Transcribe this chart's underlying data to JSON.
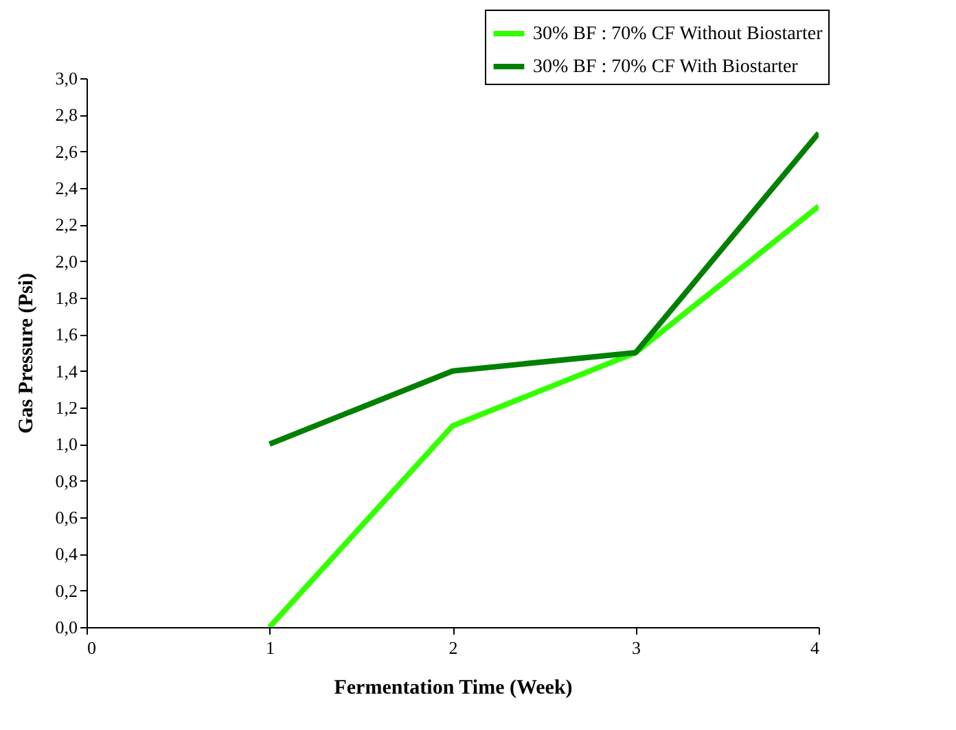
{
  "chart_data": {
    "type": "line",
    "xlabel": "Fermentation Time (Week)",
    "ylabel": "Gas Pressure (Psi)",
    "x": [
      1,
      2,
      3,
      4
    ],
    "series": [
      {
        "name": "30% BF : 70% CF Without Biostarter",
        "color": "#33ff00",
        "values": [
          0.0,
          1.1,
          1.5,
          2.3
        ]
      },
      {
        "name": "30% BF : 70% CF With Biostarter",
        "color": "#008000",
        "values": [
          1.0,
          1.4,
          1.5,
          2.7
        ]
      }
    ],
    "xlim": [
      0,
      4
    ],
    "xticks": [
      0,
      1,
      2,
      3,
      4
    ],
    "ylim": [
      0,
      3.0
    ],
    "yticks": [
      {
        "value": 0,
        "label": "0,0"
      },
      {
        "value": 0.2,
        "label": "0,2"
      },
      {
        "value": 0.4,
        "label": "0,4"
      },
      {
        "value": 0.6,
        "label": "0,6"
      },
      {
        "value": 0.8,
        "label": "0,8"
      },
      {
        "value": 1.0,
        "label": "1,0"
      },
      {
        "value": 1.2,
        "label": "1,2"
      },
      {
        "value": 1.4,
        "label": "1,4"
      },
      {
        "value": 1.6,
        "label": "1,6"
      },
      {
        "value": 1.8,
        "label": "1,8"
      },
      {
        "value": 2.0,
        "label": "2,0"
      },
      {
        "value": 2.2,
        "label": "2,2"
      },
      {
        "value": 2.4,
        "label": "2,4"
      },
      {
        "value": 2.6,
        "label": "2,6"
      },
      {
        "value": 2.8,
        "label": "2,8"
      },
      {
        "value": 3.0,
        "label": "3,0"
      }
    ],
    "grid": false,
    "legend": "top right",
    "marker": "none",
    "line_style": "solid"
  }
}
